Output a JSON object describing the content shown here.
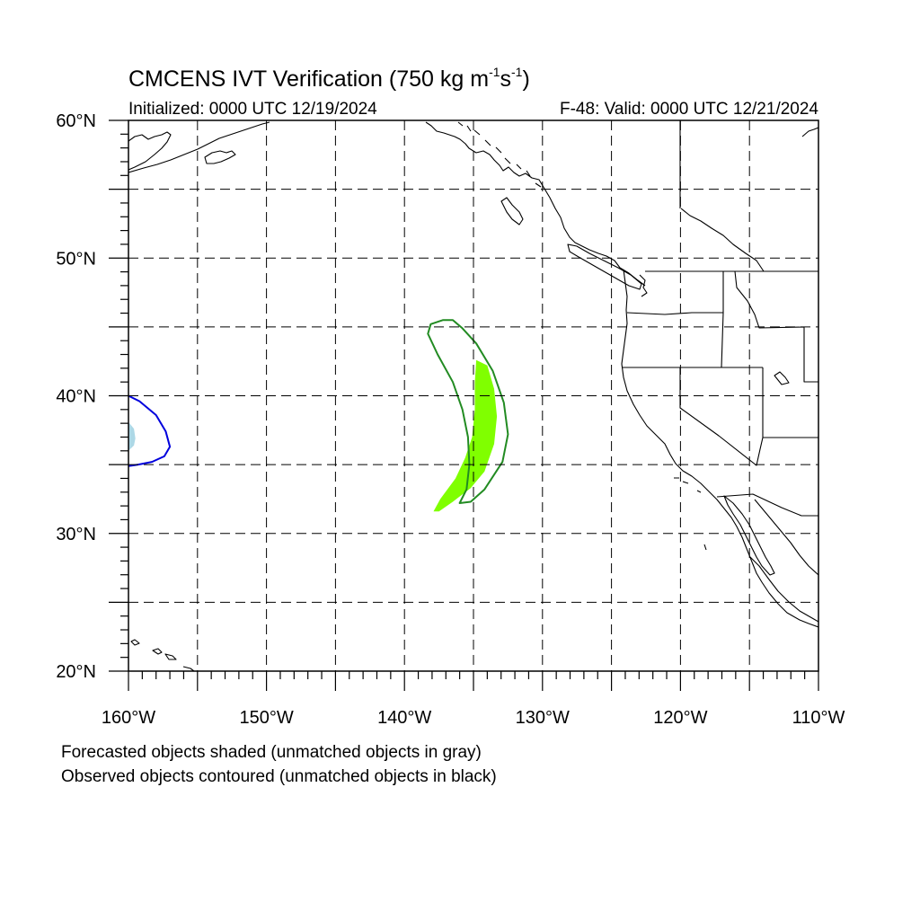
{
  "title": {
    "prefix": "CMCENS IVT Verification (750 kg m",
    "sup1": "-1",
    "mid": "s",
    "sup2": "-1",
    "suffix": ")"
  },
  "initialized": "Initialized: 0000 UTC 12/19/2024",
  "valid": "F-48: Valid: 0000 UTC 12/21/2024",
  "legend_notes": [
    "Forecasted objects shaded (unmatched objects in gray)",
    "Observed objects contoured (unmatched objects in black)"
  ],
  "map": {
    "lon_range": [
      -160,
      -110
    ],
    "lat_range": [
      20,
      60
    ],
    "grid_spacing_deg": 5,
    "grid_style": "dashed",
    "lat_labels": [
      {
        "lat": 60,
        "text": "60°N"
      },
      {
        "lat": 50,
        "text": "50°N"
      },
      {
        "lat": 40,
        "text": "40°N"
      },
      {
        "lat": 30,
        "text": "30°N"
      },
      {
        "lat": 20,
        "text": "20°N"
      }
    ],
    "lon_labels": [
      {
        "lon": -160,
        "text": "160°W"
      },
      {
        "lon": -150,
        "text": "150°W"
      },
      {
        "lon": -140,
        "text": "140°W"
      },
      {
        "lon": -130,
        "text": "130°W"
      },
      {
        "lon": -120,
        "text": "120°W"
      },
      {
        "lon": -110,
        "text": "110°W"
      }
    ]
  },
  "objects": [
    {
      "kind": "forecast",
      "style": "shaded",
      "color": "#80ff00",
      "outline": [
        [
          -134.8,
          42.6
        ],
        [
          -134.0,
          42.2
        ],
        [
          -133.5,
          40.5
        ],
        [
          -133.3,
          38.5
        ],
        [
          -133.5,
          36.5
        ],
        [
          -134.2,
          34.5
        ],
        [
          -135.2,
          33.3
        ],
        [
          -136.5,
          32.3
        ],
        [
          -137.5,
          31.6
        ],
        [
          -137.9,
          31.6
        ],
        [
          -137.4,
          32.5
        ],
        [
          -136.3,
          34.0
        ],
        [
          -135.6,
          35.5
        ],
        [
          -135.1,
          37.0
        ],
        [
          -134.9,
          39.0
        ],
        [
          -134.9,
          41.0
        ]
      ]
    },
    {
      "kind": "observed",
      "style": "contour",
      "color": "#228b22",
      "outline": [
        [
          -137.2,
          45.5
        ],
        [
          -136.5,
          45.5
        ],
        [
          -135.8,
          44.9
        ],
        [
          -134.8,
          43.8
        ],
        [
          -133.6,
          41.8
        ],
        [
          -132.8,
          39.5
        ],
        [
          -132.5,
          37.2
        ],
        [
          -132.9,
          35.2
        ],
        [
          -134.2,
          33.2
        ],
        [
          -135.2,
          32.3
        ],
        [
          -136.0,
          32.2
        ],
        [
          -135.5,
          33.2
        ],
        [
          -135.3,
          35.0
        ],
        [
          -135.4,
          37.0
        ],
        [
          -135.8,
          39.0
        ],
        [
          -136.5,
          41.0
        ],
        [
          -137.6,
          43.0
        ],
        [
          -138.3,
          44.5
        ],
        [
          -138.1,
          45.2
        ]
      ]
    },
    {
      "kind": "observed",
      "style": "contour",
      "color": "#0000dd",
      "outline": [
        [
          -160.0,
          40.0
        ],
        [
          -159.2,
          39.6
        ],
        [
          -158.0,
          38.6
        ],
        [
          -157.3,
          37.4
        ],
        [
          -157.0,
          36.3
        ],
        [
          -157.4,
          35.6
        ],
        [
          -158.3,
          35.2
        ],
        [
          -159.3,
          35.0
        ],
        [
          -160.0,
          34.9
        ]
      ]
    },
    {
      "kind": "forecast",
      "style": "shaded",
      "color": "#add8e6",
      "outline": [
        [
          -160.0,
          38.1
        ],
        [
          -159.6,
          37.6
        ],
        [
          -159.5,
          36.9
        ],
        [
          -159.6,
          36.4
        ],
        [
          -160.0,
          36.0
        ]
      ]
    }
  ]
}
